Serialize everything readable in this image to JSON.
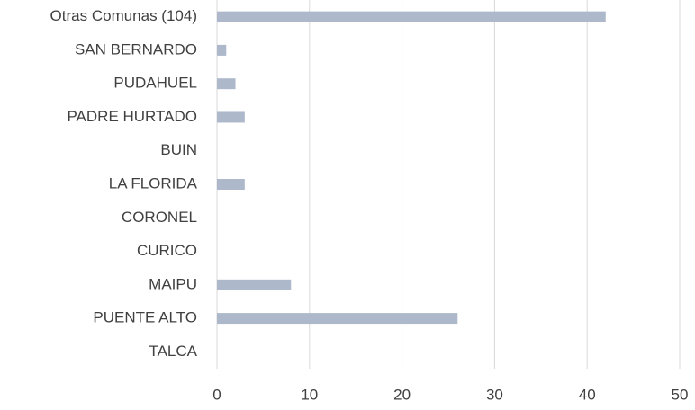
{
  "chart_data": {
    "type": "bar",
    "orientation": "horizontal",
    "categories": [
      "Otras Comunas (104)",
      "SAN BERNARDO",
      "PUDAHUEL",
      "PADRE HURTADO",
      "BUIN",
      "LA FLORIDA",
      "CORONEL",
      "CURICO",
      "MAIPU",
      "PUENTE ALTO",
      "TALCA"
    ],
    "values": [
      42,
      1,
      2,
      3,
      0,
      3,
      0,
      0,
      8,
      26,
      0
    ],
    "color": "#adb9ca",
    "xlim": [
      0,
      50
    ],
    "xticks": [
      0,
      10,
      20,
      30,
      40,
      50
    ],
    "grid": true
  }
}
